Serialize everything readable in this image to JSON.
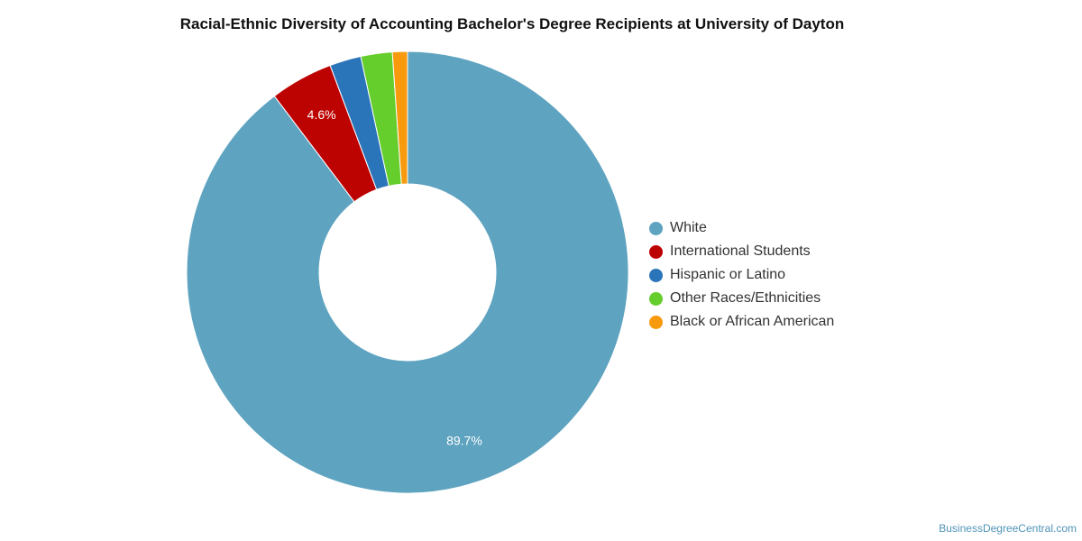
{
  "chart_data": {
    "type": "pie",
    "title": "Racial-Ethnic Diversity of Accounting Bachelor's Degree Recipients at University of Dayton",
    "donut": true,
    "series": [
      {
        "name": "White",
        "value": 89.7,
        "color": "#5ea3c0",
        "label": "89.7%"
      },
      {
        "name": "International Students",
        "value": 4.6,
        "color": "#bd0202",
        "label": "4.6%"
      },
      {
        "name": "Hispanic or Latino",
        "value": 2.3,
        "color": "#2a74ba",
        "label": ""
      },
      {
        "name": "Other Races/Ethnicities",
        "value": 2.3,
        "color": "#65cd2c",
        "label": ""
      },
      {
        "name": "Black or African American",
        "value": 1.1,
        "color": "#f79a0e",
        "label": ""
      }
    ],
    "legend_position": "right"
  },
  "watermark": "BusinessDegreeCentral.com"
}
